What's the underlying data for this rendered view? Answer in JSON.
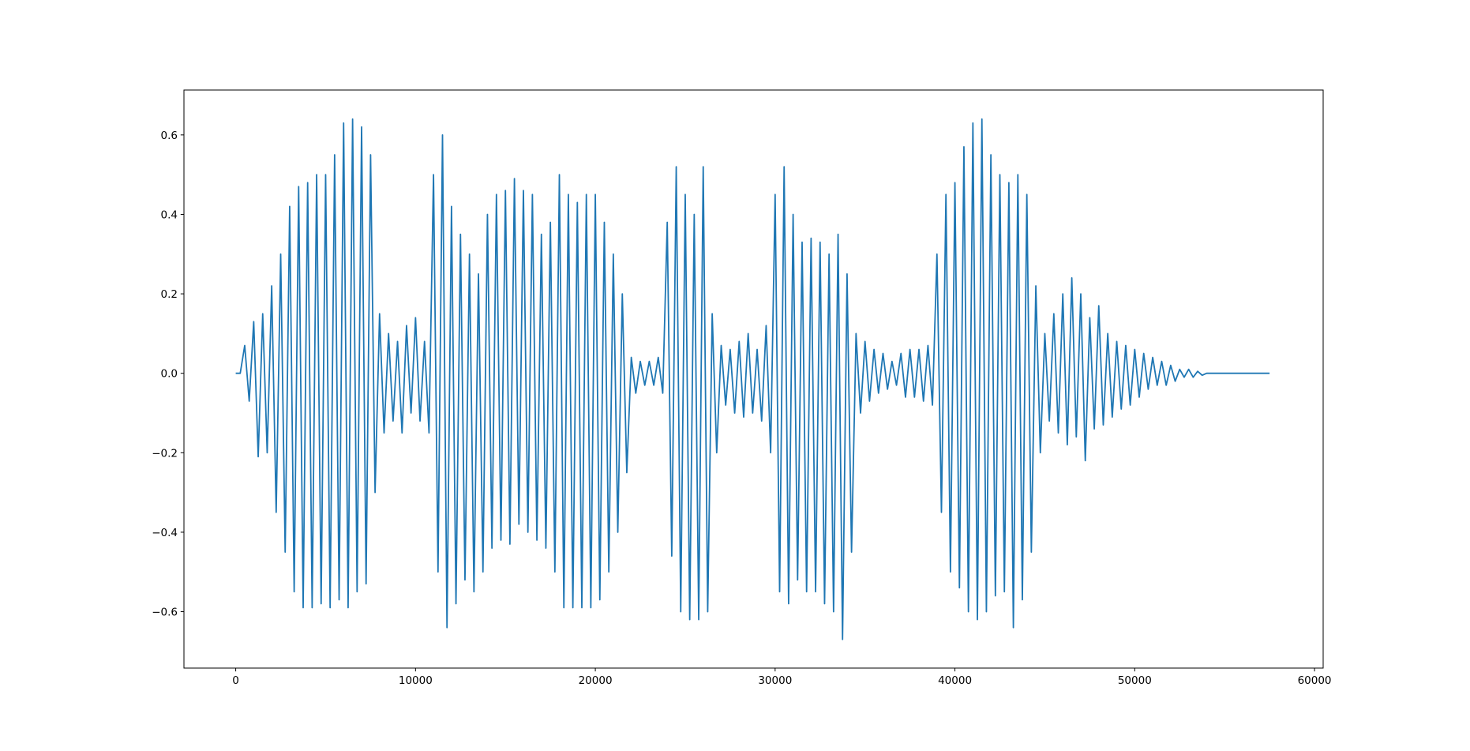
{
  "chart_data": {
    "type": "line",
    "color": "#1f77b4",
    "xlim": [
      -2880,
      60480
    ],
    "ylim": [
      -0.742,
      0.713
    ],
    "xticks": [
      0,
      10000,
      20000,
      30000,
      40000,
      50000,
      60000
    ],
    "yticks": [
      {
        "value": -0.6,
        "label": "−0.6"
      },
      {
        "value": -0.4,
        "label": "−0.4"
      },
      {
        "value": -0.2,
        "label": "−0.2"
      },
      {
        "value": 0,
        "label": "0.0"
      },
      0.2,
      0.4,
      0.6
    ],
    "x": [
      0,
      250,
      500,
      750,
      1000,
      1250,
      1500,
      1750,
      2000,
      2250,
      2500,
      2750,
      3000,
      3250,
      3500,
      3750,
      4000,
      4250,
      4500,
      4750,
      5000,
      5250,
      5500,
      5750,
      6000,
      6250,
      6500,
      6750,
      7000,
      7250,
      7500,
      7750,
      8000,
      8250,
      8500,
      8750,
      9000,
      9250,
      9500,
      9750,
      10000,
      10250,
      10500,
      10750,
      11000,
      11250,
      11500,
      11750,
      12000,
      12250,
      12500,
      12750,
      13000,
      13250,
      13500,
      13750,
      14000,
      14250,
      14500,
      14750,
      15000,
      15250,
      15500,
      15750,
      16000,
      16250,
      16500,
      16750,
      17000,
      17250,
      17500,
      17750,
      18000,
      18250,
      18500,
      18750,
      19000,
      19250,
      19500,
      19750,
      20000,
      20250,
      20500,
      20750,
      21000,
      21250,
      21500,
      21750,
      22000,
      22250,
      22500,
      22750,
      23000,
      23250,
      23500,
      23750,
      24000,
      24250,
      24500,
      24750,
      25000,
      25250,
      25500,
      25750,
      26000,
      26250,
      26500,
      26750,
      27000,
      27250,
      27500,
      27750,
      28000,
      28250,
      28500,
      28750,
      29000,
      29250,
      29500,
      29750,
      30000,
      30250,
      30500,
      30750,
      31000,
      31250,
      31500,
      31750,
      32000,
      32250,
      32500,
      32750,
      33000,
      33250,
      33500,
      33750,
      34000,
      34250,
      34500,
      34750,
      35000,
      35250,
      35500,
      35750,
      36000,
      36250,
      36500,
      36750,
      37000,
      37250,
      37500,
      37750,
      38000,
      38250,
      38500,
      38750,
      39000,
      39250,
      39500,
      39750,
      40000,
      40250,
      40500,
      40750,
      41000,
      41250,
      41500,
      41750,
      42000,
      42250,
      42500,
      42750,
      43000,
      43250,
      43500,
      43750,
      44000,
      44250,
      44500,
      44750,
      45000,
      45250,
      45500,
      45750,
      46000,
      46250,
      46500,
      46750,
      47000,
      47250,
      47500,
      47750,
      48000,
      48250,
      48500,
      48750,
      49000,
      49250,
      49500,
      49750,
      50000,
      50250,
      50500,
      50750,
      51000,
      51250,
      51500,
      51750,
      52000,
      52250,
      52500,
      52750,
      53000,
      53250,
      53500,
      53750,
      54000,
      54250,
      54500,
      54750,
      55000,
      55250,
      55500,
      55750,
      56000,
      56250,
      56500,
      56750,
      57000,
      57250,
      57500
    ],
    "values": [
      0,
      0,
      0.07,
      -0.07,
      0.13,
      -0.21,
      0.15,
      -0.2,
      0.22,
      -0.35,
      0.3,
      -0.45,
      0.42,
      -0.55,
      0.47,
      -0.59,
      0.48,
      -0.59,
      0.5,
      -0.58,
      0.5,
      -0.59,
      0.55,
      -0.57,
      0.63,
      -0.59,
      0.64,
      -0.55,
      0.62,
      -0.53,
      0.55,
      -0.3,
      0.15,
      -0.15,
      0.1,
      -0.12,
      0.08,
      -0.15,
      0.12,
      -0.1,
      0.14,
      -0.12,
      0.08,
      -0.15,
      0.5,
      -0.5,
      0.6,
      -0.64,
      0.42,
      -0.58,
      0.35,
      -0.52,
      0.3,
      -0.55,
      0.25,
      -0.5,
      0.4,
      -0.44,
      0.45,
      -0.42,
      0.46,
      -0.43,
      0.49,
      -0.38,
      0.46,
      -0.4,
      0.45,
      -0.42,
      0.35,
      -0.44,
      0.38,
      -0.5,
      0.5,
      -0.59,
      0.45,
      -0.59,
      0.43,
      -0.59,
      0.45,
      -0.59,
      0.45,
      -0.57,
      0.38,
      -0.5,
      0.3,
      -0.4,
      0.2,
      -0.25,
      0.04,
      -0.05,
      0.03,
      -0.03,
      0.03,
      -0.03,
      0.04,
      -0.05,
      0.38,
      -0.46,
      0.52,
      -0.6,
      0.45,
      -0.62,
      0.4,
      -0.62,
      0.52,
      -0.6,
      0.15,
      -0.2,
      0.07,
      -0.08,
      0.06,
      -0.1,
      0.08,
      -0.11,
      0.1,
      -0.1,
      0.06,
      -0.12,
      0.12,
      -0.2,
      0.45,
      -0.55,
      0.52,
      -0.58,
      0.4,
      -0.52,
      0.33,
      -0.55,
      0.34,
      -0.55,
      0.33,
      -0.58,
      0.3,
      -0.6,
      0.35,
      -0.67,
      0.25,
      -0.45,
      0.1,
      -0.1,
      0.08,
      -0.07,
      0.06,
      -0.05,
      0.05,
      -0.04,
      0.03,
      -0.03,
      0.05,
      -0.06,
      0.06,
      -0.06,
      0.06,
      -0.07,
      0.07,
      -0.08,
      0.3,
      -0.35,
      0.45,
      -0.5,
      0.48,
      -0.54,
      0.57,
      -0.6,
      0.63,
      -0.62,
      0.64,
      -0.6,
      0.55,
      -0.56,
      0.5,
      -0.55,
      0.48,
      -0.64,
      0.5,
      -0.57,
      0.45,
      -0.45,
      0.22,
      -0.2,
      0.1,
      -0.12,
      0.15,
      -0.15,
      0.2,
      -0.18,
      0.24,
      -0.16,
      0.2,
      -0.22,
      0.14,
      -0.14,
      0.17,
      -0.13,
      0.1,
      -0.11,
      0.08,
      -0.09,
      0.07,
      -0.08,
      0.06,
      -0.06,
      0.05,
      -0.04,
      0.04,
      -0.03,
      0.03,
      -0.03,
      0.02,
      -0.02,
      0.01,
      -0.01,
      0.01,
      -0.01,
      0.005,
      -0.005,
      0,
      0,
      0,
      0,
      0,
      0,
      0,
      0,
      0,
      0,
      0,
      0,
      0,
      0,
      0
    ]
  }
}
